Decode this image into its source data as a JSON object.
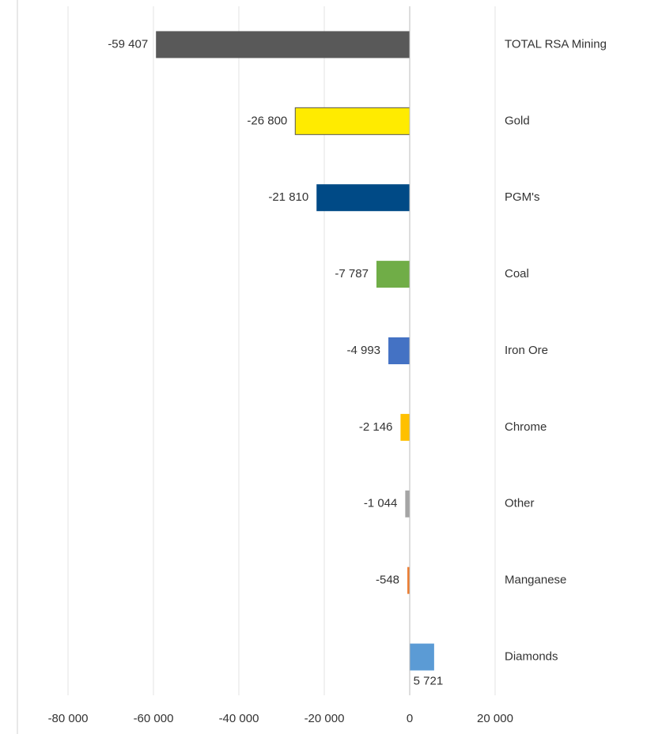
{
  "chart_data": {
    "type": "barh",
    "categories": [
      "TOTAL RSA Mining",
      "Gold",
      "PGM's",
      "Coal",
      "Iron Ore",
      "Chrome",
      "Other",
      "Manganese",
      "Diamonds"
    ],
    "values": [
      -59407,
      -26800,
      -21810,
      -7787,
      -4993,
      -2146,
      -1044,
      -548,
      5721
    ],
    "value_labels": [
      "-59 407",
      "-26 800",
      "-21 810",
      "-7 787",
      "-4 993",
      "-2 146",
      "-1 044",
      "-548",
      "5 721"
    ],
    "colors": [
      "#595959",
      "#ffeb00",
      "#004a86",
      "#70ad47",
      "#4472c4",
      "#ffc000",
      "#a5a5a5",
      "#ed7d31",
      "#5b9bd5"
    ],
    "xlim": [
      -80000,
      20000
    ],
    "xticks": [
      {
        "value": -80000,
        "label": "-80 000"
      },
      {
        "value": -60000,
        "label": "-60 000"
      },
      {
        "value": -40000,
        "label": "-40 000"
      },
      {
        "value": -20000,
        "label": "-20 000"
      },
      0,
      {
        "value": 20000,
        "label": "20 000"
      }
    ],
    "grid": true
  }
}
